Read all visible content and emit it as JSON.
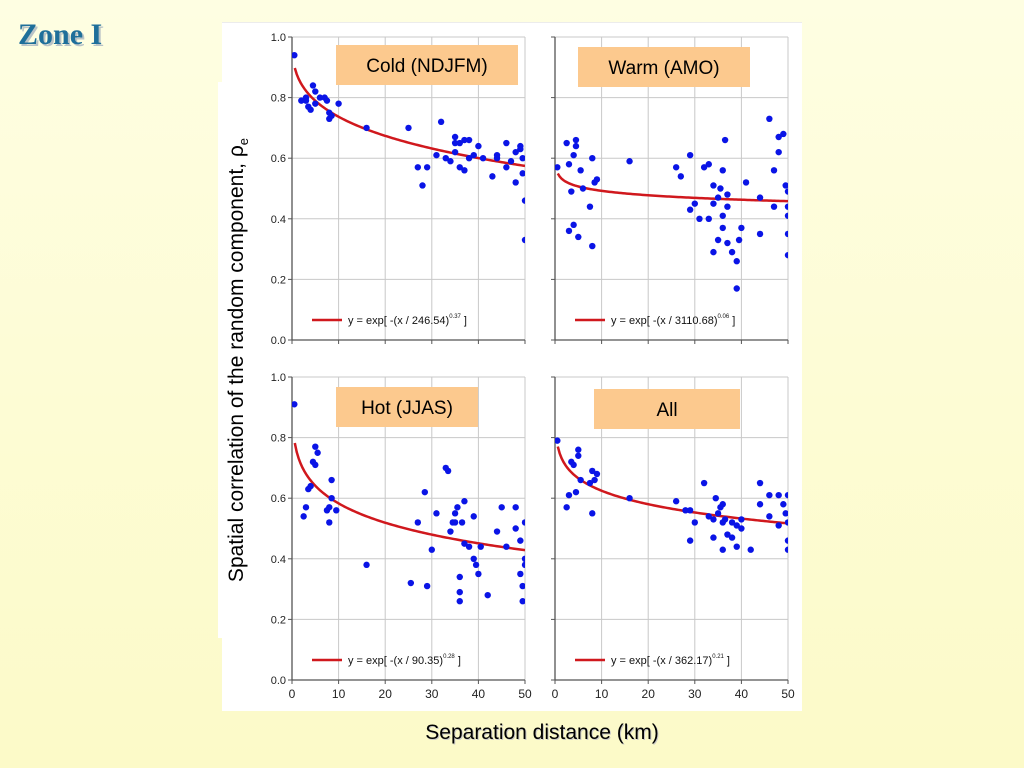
{
  "slide": {
    "title": "Zone I",
    "y_axis_label": "Spatial correlation of the random component, ",
    "y_axis_symbol": "ρ",
    "y_axis_subscript": "e",
    "x_axis_label": "Separation distance (km)"
  },
  "colors": {
    "points": "#0a14e6",
    "fit_line": "#d0181d",
    "panel_label_bg": "#fcc98e",
    "grid": "#c8c8c8"
  },
  "chart_data": [
    {
      "type": "scatter",
      "title": "Cold (NDJFM)",
      "xlim": [
        0,
        50
      ],
      "ylim": [
        0,
        1
      ],
      "x_ticks": [
        "0",
        "10",
        "20",
        "30",
        "40",
        "50"
      ],
      "y_ticks": [
        "0.0",
        "0.2",
        "0.4",
        "0.6",
        "0.8",
        "1.0"
      ],
      "show_x_ticks": false,
      "show_y_ticks": true,
      "grid": true,
      "fit": {
        "scale": 246.54,
        "exponent": 0.37,
        "equation_prefix": "y = exp[ -(x / 246.54)",
        "equation_suffix": " ]",
        "exponent_label": "0.37"
      },
      "points": [
        [
          0.5,
          0.94
        ],
        [
          2,
          0.79
        ],
        [
          3,
          0.8
        ],
        [
          3,
          0.79
        ],
        [
          3.5,
          0.77
        ],
        [
          4,
          0.76
        ],
        [
          4.5,
          0.84
        ],
        [
          5,
          0.82
        ],
        [
          5,
          0.78
        ],
        [
          6,
          0.8
        ],
        [
          7,
          0.8
        ],
        [
          7.5,
          0.79
        ],
        [
          8,
          0.75
        ],
        [
          8,
          0.73
        ],
        [
          8.5,
          0.74
        ],
        [
          10,
          0.78
        ],
        [
          16,
          0.7
        ],
        [
          25,
          0.7
        ],
        [
          27,
          0.57
        ],
        [
          28,
          0.51
        ],
        [
          29,
          0.57
        ],
        [
          31,
          0.61
        ],
        [
          32,
          0.72
        ],
        [
          33,
          0.6
        ],
        [
          34,
          0.59
        ],
        [
          35,
          0.65
        ],
        [
          35,
          0.67
        ],
        [
          35,
          0.62
        ],
        [
          36,
          0.57
        ],
        [
          36,
          0.65
        ],
        [
          37,
          0.56
        ],
        [
          37,
          0.66
        ],
        [
          38,
          0.66
        ],
        [
          38,
          0.6
        ],
        [
          39,
          0.61
        ],
        [
          40,
          0.64
        ],
        [
          41,
          0.6
        ],
        [
          43,
          0.54
        ],
        [
          44,
          0.6
        ],
        [
          44,
          0.61
        ],
        [
          46,
          0.57
        ],
        [
          46,
          0.65
        ],
        [
          47,
          0.59
        ],
        [
          48,
          0.52
        ],
        [
          48,
          0.62
        ],
        [
          49,
          0.63
        ],
        [
          49,
          0.64
        ],
        [
          49.5,
          0.6
        ],
        [
          49.5,
          0.55
        ],
        [
          50,
          0.46
        ],
        [
          50,
          0.33
        ]
      ]
    },
    {
      "type": "scatter",
      "title": "Warm (AMO)",
      "xlim": [
        0,
        50
      ],
      "ylim": [
        0,
        1
      ],
      "x_ticks": [
        "0",
        "10",
        "20",
        "30",
        "40",
        "50"
      ],
      "y_ticks": [
        "0.0",
        "0.2",
        "0.4",
        "0.6",
        "0.8",
        "1.0"
      ],
      "show_x_ticks": false,
      "show_y_ticks": false,
      "grid": true,
      "fit": {
        "scale": 3110.68,
        "exponent": 0.06,
        "equation_prefix": "y = exp[ -(x / 3110.68)",
        "equation_suffix": " ]",
        "exponent_label": "0.06"
      },
      "points": [
        [
          0.5,
          0.57
        ],
        [
          2.5,
          0.65
        ],
        [
          3,
          0.58
        ],
        [
          3,
          0.36
        ],
        [
          3.5,
          0.49
        ],
        [
          4,
          0.61
        ],
        [
          4,
          0.38
        ],
        [
          4.5,
          0.66
        ],
        [
          4.5,
          0.64
        ],
        [
          5,
          0.34
        ],
        [
          5.5,
          0.56
        ],
        [
          6,
          0.5
        ],
        [
          7.5,
          0.44
        ],
        [
          8,
          0.31
        ],
        [
          8,
          0.6
        ],
        [
          8.5,
          0.52
        ],
        [
          9,
          0.53
        ],
        [
          16,
          0.59
        ],
        [
          26,
          0.57
        ],
        [
          27,
          0.54
        ],
        [
          29,
          0.43
        ],
        [
          29,
          0.61
        ],
        [
          30,
          0.45
        ],
        [
          31,
          0.4
        ],
        [
          32,
          0.57
        ],
        [
          33,
          0.58
        ],
        [
          33,
          0.4
        ],
        [
          34,
          0.29
        ],
        [
          34,
          0.45
        ],
        [
          34,
          0.51
        ],
        [
          35,
          0.33
        ],
        [
          35,
          0.47
        ],
        [
          35.5,
          0.5
        ],
        [
          36,
          0.37
        ],
        [
          36,
          0.41
        ],
        [
          36,
          0.56
        ],
        [
          36.5,
          0.66
        ],
        [
          37,
          0.44
        ],
        [
          37,
          0.48
        ],
        [
          37,
          0.32
        ],
        [
          38,
          0.29
        ],
        [
          39,
          0.17
        ],
        [
          39,
          0.26
        ],
        [
          39.5,
          0.33
        ],
        [
          40,
          0.37
        ],
        [
          41,
          0.52
        ],
        [
          44,
          0.35
        ],
        [
          44,
          0.47
        ],
        [
          46,
          0.73
        ],
        [
          47,
          0.44
        ],
        [
          47,
          0.56
        ],
        [
          48,
          0.62
        ],
        [
          48,
          0.67
        ],
        [
          49,
          0.68
        ],
        [
          49.5,
          0.51
        ],
        [
          50,
          0.49
        ],
        [
          50,
          0.44
        ],
        [
          50,
          0.41
        ],
        [
          50,
          0.35
        ],
        [
          50,
          0.28
        ]
      ]
    },
    {
      "type": "scatter",
      "title": "Hot (JJAS)",
      "xlim": [
        0,
        50
      ],
      "ylim": [
        0,
        1
      ],
      "x_ticks": [
        "0",
        "10",
        "20",
        "30",
        "40",
        "50"
      ],
      "y_ticks": [
        "0.0",
        "0.2",
        "0.4",
        "0.6",
        "0.8",
        "1.0"
      ],
      "show_x_ticks": true,
      "show_y_ticks": true,
      "grid": true,
      "fit": {
        "scale": 90.35,
        "exponent": 0.28,
        "equation_prefix": "y = exp[ -(x / 90.35)",
        "equation_suffix": " ]",
        "exponent_label": "0.28"
      },
      "points": [
        [
          0.5,
          0.91
        ],
        [
          2.5,
          0.54
        ],
        [
          3,
          0.57
        ],
        [
          3.5,
          0.63
        ],
        [
          4,
          0.64
        ],
        [
          4.5,
          0.72
        ],
        [
          5,
          0.71
        ],
        [
          5,
          0.77
        ],
        [
          5.5,
          0.75
        ],
        [
          7.5,
          0.56
        ],
        [
          8,
          0.57
        ],
        [
          8,
          0.52
        ],
        [
          8.5,
          0.6
        ],
        [
          8.5,
          0.66
        ],
        [
          9.5,
          0.56
        ],
        [
          16,
          0.38
        ],
        [
          25.5,
          0.32
        ],
        [
          27,
          0.52
        ],
        [
          28.5,
          0.62
        ],
        [
          29,
          0.31
        ],
        [
          30,
          0.43
        ],
        [
          31,
          0.55
        ],
        [
          33,
          0.7
        ],
        [
          33.5,
          0.69
        ],
        [
          34,
          0.49
        ],
        [
          34.5,
          0.52
        ],
        [
          35,
          0.55
        ],
        [
          35,
          0.52
        ],
        [
          35.5,
          0.57
        ],
        [
          36,
          0.34
        ],
        [
          36,
          0.29
        ],
        [
          36,
          0.26
        ],
        [
          36.5,
          0.52
        ],
        [
          37,
          0.45
        ],
        [
          37,
          0.59
        ],
        [
          38,
          0.44
        ],
        [
          39,
          0.54
        ],
        [
          39,
          0.4
        ],
        [
          39.5,
          0.38
        ],
        [
          40,
          0.35
        ],
        [
          40.5,
          0.44
        ],
        [
          42,
          0.28
        ],
        [
          44,
          0.49
        ],
        [
          45,
          0.57
        ],
        [
          46,
          0.44
        ],
        [
          48,
          0.57
        ],
        [
          48,
          0.5
        ],
        [
          49,
          0.46
        ],
        [
          49,
          0.35
        ],
        [
          49.5,
          0.31
        ],
        [
          49.5,
          0.26
        ],
        [
          50,
          0.52
        ],
        [
          50,
          0.38
        ],
        [
          50,
          0.4
        ]
      ]
    },
    {
      "type": "scatter",
      "title": "All",
      "xlim": [
        0,
        50
      ],
      "ylim": [
        0,
        1
      ],
      "x_ticks": [
        "0",
        "10",
        "20",
        "30",
        "40",
        "50"
      ],
      "y_ticks": [
        "0.0",
        "0.2",
        "0.4",
        "0.6",
        "0.8",
        "1.0"
      ],
      "show_x_ticks": true,
      "show_y_ticks": false,
      "grid": true,
      "fit": {
        "scale": 362.17,
        "exponent": 0.21,
        "equation_prefix": "y = exp[ -(x / 362.17)",
        "equation_suffix": " ]",
        "exponent_label": "0.21"
      },
      "points": [
        [
          0.5,
          0.79
        ],
        [
          2.5,
          0.57
        ],
        [
          3,
          0.61
        ],
        [
          3.5,
          0.72
        ],
        [
          4,
          0.71
        ],
        [
          4.5,
          0.62
        ],
        [
          5,
          0.76
        ],
        [
          5,
          0.74
        ],
        [
          5.5,
          0.66
        ],
        [
          7.5,
          0.65
        ],
        [
          8,
          0.55
        ],
        [
          8,
          0.69
        ],
        [
          8.5,
          0.66
        ],
        [
          9,
          0.68
        ],
        [
          16,
          0.6
        ],
        [
          26,
          0.59
        ],
        [
          28,
          0.56
        ],
        [
          29,
          0.46
        ],
        [
          29,
          0.56
        ],
        [
          30,
          0.52
        ],
        [
          32,
          0.65
        ],
        [
          33,
          0.54
        ],
        [
          34,
          0.47
        ],
        [
          34,
          0.53
        ],
        [
          34.5,
          0.6
        ],
        [
          35,
          0.55
        ],
        [
          35.5,
          0.57
        ],
        [
          36,
          0.58
        ],
        [
          36,
          0.43
        ],
        [
          36,
          0.52
        ],
        [
          36.5,
          0.53
        ],
        [
          37,
          0.48
        ],
        [
          38,
          0.47
        ],
        [
          38,
          0.52
        ],
        [
          39,
          0.44
        ],
        [
          39,
          0.51
        ],
        [
          40,
          0.5
        ],
        [
          40,
          0.53
        ],
        [
          42,
          0.43
        ],
        [
          44,
          0.65
        ],
        [
          44,
          0.58
        ],
        [
          46,
          0.61
        ],
        [
          46,
          0.54
        ],
        [
          48,
          0.51
        ],
        [
          48,
          0.61
        ],
        [
          49,
          0.58
        ],
        [
          49.5,
          0.55
        ],
        [
          50,
          0.52
        ],
        [
          50,
          0.46
        ],
        [
          50,
          0.43
        ],
        [
          50,
          0.61
        ]
      ]
    }
  ]
}
